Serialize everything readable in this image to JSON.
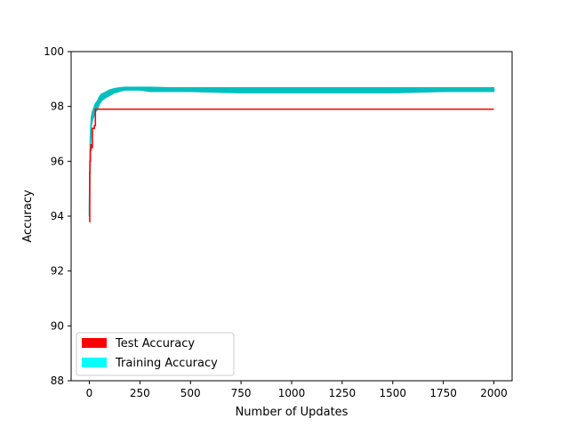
{
  "chart_data": {
    "type": "line",
    "title": "",
    "xlabel": "Number of Updates",
    "ylabel": "Accuracy",
    "xlim": [
      -90,
      2090
    ],
    "ylim": [
      88,
      100
    ],
    "xticks": [
      0,
      250,
      500,
      750,
      1000,
      1250,
      1500,
      1750,
      2000
    ],
    "yticks": [
      88,
      90,
      92,
      94,
      96,
      98,
      100
    ],
    "grid": false,
    "legend_position": "lower-left",
    "series": [
      {
        "name": "Test Accuracy",
        "color": "#ff0000",
        "style": "step",
        "x": [
          0,
          2,
          3,
          5,
          8,
          10,
          15,
          20,
          25,
          30,
          2000
        ],
        "y": [
          93.8,
          95.6,
          96.0,
          96.4,
          96.6,
          96.5,
          97.2,
          97.2,
          97.3,
          97.9,
          97.9
        ]
      },
      {
        "name": "Training Accuracy",
        "color": "#00bfbf",
        "legend_color": "#00ffff",
        "style": "band",
        "x": [
          0,
          5,
          10,
          15,
          20,
          30,
          40,
          50,
          60,
          75,
          100,
          125,
          150,
          175,
          200,
          250,
          300,
          400,
          500,
          750,
          1000,
          1250,
          1500,
          1750,
          2000
        ],
        "lower": [
          94.0,
          96.6,
          97.3,
          97.5,
          97.6,
          97.8,
          97.9,
          98.1,
          98.2,
          98.3,
          98.4,
          98.5,
          98.55,
          98.6,
          98.6,
          98.6,
          98.55,
          98.55,
          98.55,
          98.5,
          98.5,
          98.5,
          98.5,
          98.55,
          98.55
        ],
        "upper": [
          94.3,
          96.9,
          97.6,
          97.8,
          97.9,
          98.1,
          98.2,
          98.35,
          98.45,
          98.5,
          98.6,
          98.65,
          98.68,
          98.7,
          98.7,
          98.7,
          98.7,
          98.68,
          98.68,
          98.68,
          98.68,
          98.68,
          98.68,
          98.68,
          98.68
        ]
      }
    ]
  }
}
